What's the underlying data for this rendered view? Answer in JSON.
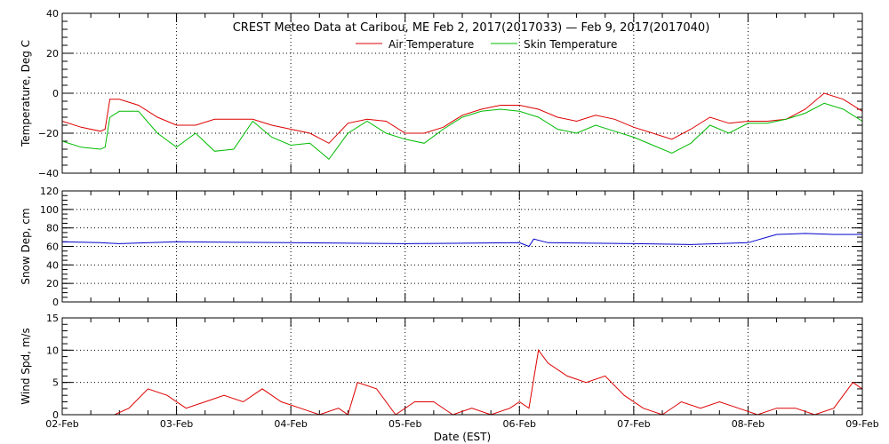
{
  "chart_data": {
    "type": "line",
    "title": "CREST Meteo Data at Caribou, ME   Feb  2, 2017(2017033) — Feb  9, 2017(2017040)",
    "xlabel": "Date (EST)",
    "x_ticks": [
      "02-Feb",
      "03-Feb",
      "04-Feb",
      "05-Feb",
      "06-Feb",
      "07-Feb",
      "08-Feb",
      "09-Feb"
    ],
    "x_range": [
      "2017-02-02T00:00",
      "2017-02-09T00:00"
    ],
    "grid": true,
    "panels": [
      {
        "ylabel": "Temperature, Deg C",
        "ylim": [
          -40,
          40
        ],
        "y_ticks": [
          "40",
          "20",
          "0",
          "−20",
          "−40"
        ],
        "legend": {
          "placement": "top-center"
        },
        "series": [
          {
            "name": "Air Temperature",
            "color": "#dd0000",
            "x": [
              "2017-02-02T00:00",
              "2017-02-02T04:00",
              "2017-02-02T08:00",
              "2017-02-02T09:00",
              "2017-02-02T10:00",
              "2017-02-02T12:00",
              "2017-02-02T16:00",
              "2017-02-02T20:00",
              "2017-02-03T00:00",
              "2017-02-03T04:00",
              "2017-02-03T08:00",
              "2017-02-03T12:00",
              "2017-02-03T16:00",
              "2017-02-03T20:00",
              "2017-02-04T00:00",
              "2017-02-04T04:00",
              "2017-02-04T08:00",
              "2017-02-04T12:00",
              "2017-02-04T16:00",
              "2017-02-04T20:00",
              "2017-02-05T00:00",
              "2017-02-05T04:00",
              "2017-02-05T08:00",
              "2017-02-05T12:00",
              "2017-02-05T16:00",
              "2017-02-05T20:00",
              "2017-02-06T00:00",
              "2017-02-06T04:00",
              "2017-02-06T08:00",
              "2017-02-06T12:00",
              "2017-02-06T16:00",
              "2017-02-06T20:00",
              "2017-02-07T00:00",
              "2017-02-07T04:00",
              "2017-02-07T08:00",
              "2017-02-07T12:00",
              "2017-02-07T16:00",
              "2017-02-07T20:00",
              "2017-02-08T00:00",
              "2017-02-08T04:00",
              "2017-02-08T08:00",
              "2017-02-08T12:00",
              "2017-02-08T16:00",
              "2017-02-08T20:00",
              "2017-02-09T00:00"
            ],
            "values": [
              -14,
              -17,
              -19,
              -18,
              -3,
              -3,
              -6,
              -12,
              -16,
              -16,
              -13,
              -13,
              -13,
              -16,
              -18,
              -20,
              -25,
              -15,
              -13,
              -14,
              -20,
              -20,
              -17,
              -11,
              -8,
              -6,
              -6,
              -8,
              -12,
              -14,
              -11,
              -13,
              -17,
              -20,
              -23,
              -18,
              -12,
              -15,
              -14,
              -14,
              -13,
              -8,
              0,
              -3,
              -9
            ]
          },
          {
            "name": "Skin Temperature",
            "color": "#00bb00",
            "x": [
              "2017-02-02T00:00",
              "2017-02-02T04:00",
              "2017-02-02T08:00",
              "2017-02-02T09:00",
              "2017-02-02T10:00",
              "2017-02-02T12:00",
              "2017-02-02T16:00",
              "2017-02-02T20:00",
              "2017-02-03T00:00",
              "2017-02-03T04:00",
              "2017-02-03T08:00",
              "2017-02-03T12:00",
              "2017-02-03T16:00",
              "2017-02-03T20:00",
              "2017-02-04T00:00",
              "2017-02-04T04:00",
              "2017-02-04T08:00",
              "2017-02-04T12:00",
              "2017-02-04T16:00",
              "2017-02-04T20:00",
              "2017-02-05T00:00",
              "2017-02-05T04:00",
              "2017-02-05T08:00",
              "2017-02-05T12:00",
              "2017-02-05T16:00",
              "2017-02-05T20:00",
              "2017-02-06T00:00",
              "2017-02-06T04:00",
              "2017-02-06T08:00",
              "2017-02-06T12:00",
              "2017-02-06T16:00",
              "2017-02-06T20:00",
              "2017-02-07T00:00",
              "2017-02-07T04:00",
              "2017-02-07T08:00",
              "2017-02-07T12:00",
              "2017-02-07T16:00",
              "2017-02-07T20:00",
              "2017-02-08T00:00",
              "2017-02-08T04:00",
              "2017-02-08T08:00",
              "2017-02-08T12:00",
              "2017-02-08T16:00",
              "2017-02-08T20:00",
              "2017-02-09T00:00"
            ],
            "values": [
              -24,
              -27,
              -28,
              -27,
              -12,
              -9,
              -9,
              -20,
              -27,
              -20,
              -29,
              -28,
              -14,
              -22,
              -26,
              -25,
              -33,
              -20,
              -14,
              -20,
              -23,
              -25,
              -18,
              -12,
              -9,
              -8,
              -9,
              -12,
              -18,
              -20,
              -16,
              -19,
              -22,
              -26,
              -30,
              -25,
              -16,
              -20,
              -15,
              -15,
              -13,
              -10,
              -5,
              -8,
              -14
            ]
          }
        ]
      },
      {
        "ylabel": "Snow Dep, cm",
        "ylim": [
          0,
          120
        ],
        "y_ticks": [
          "120",
          "100",
          "80",
          "60",
          "40",
          "20",
          "0"
        ],
        "series": [
          {
            "color": "#0000cc",
            "x": [
              "2017-02-02T00:00",
              "2017-02-02T08:00",
              "2017-02-02T12:00",
              "2017-02-03T00:00",
              "2017-02-04T00:00",
              "2017-02-05T00:00",
              "2017-02-06T00:00",
              "2017-02-06T02:00",
              "2017-02-06T03:00",
              "2017-02-06T06:00",
              "2017-02-07T00:00",
              "2017-02-07T12:00",
              "2017-02-08T00:00",
              "2017-02-08T06:00",
              "2017-02-08T12:00",
              "2017-02-08T18:00",
              "2017-02-09T00:00"
            ],
            "values": [
              65,
              64,
              63,
              65,
              64,
              63,
              64,
              60,
              68,
              64,
              63,
              62,
              64,
              73,
              74,
              73,
              73
            ]
          }
        ]
      },
      {
        "ylabel": "Wind Spd, m/s",
        "ylim": [
          0,
          15
        ],
        "y_ticks": [
          "15",
          "10",
          "5",
          "0"
        ],
        "series": [
          {
            "color": "#dd0000",
            "x": [
              "2017-02-02T00:00",
              "2017-02-02T04:00",
              "2017-02-02T08:00",
              "2017-02-02T11:00",
              "2017-02-02T14:00",
              "2017-02-02T18:00",
              "2017-02-02T22:00",
              "2017-02-03T02:00",
              "2017-02-03T06:00",
              "2017-02-03T10:00",
              "2017-02-03T14:00",
              "2017-02-03T18:00",
              "2017-02-03T22:00",
              "2017-02-04T02:00",
              "2017-02-04T06:00",
              "2017-02-04T10:00",
              "2017-02-04T12:00",
              "2017-02-04T14:00",
              "2017-02-04T18:00",
              "2017-02-04T22:00",
              "2017-02-05T02:00",
              "2017-02-05T06:00",
              "2017-02-05T10:00",
              "2017-02-05T14:00",
              "2017-02-05T18:00",
              "2017-02-05T22:00",
              "2017-02-06T00:00",
              "2017-02-06T02:00",
              "2017-02-06T04:00",
              "2017-02-06T06:00",
              "2017-02-06T10:00",
              "2017-02-06T14:00",
              "2017-02-06T18:00",
              "2017-02-06T22:00",
              "2017-02-07T02:00",
              "2017-02-07T06:00",
              "2017-02-07T10:00",
              "2017-02-07T14:00",
              "2017-02-07T18:00",
              "2017-02-07T22:00",
              "2017-02-08T02:00",
              "2017-02-08T06:00",
              "2017-02-08T10:00",
              "2017-02-08T14:00",
              "2017-02-08T18:00",
              "2017-02-08T20:00",
              "2017-02-08T22:00",
              "2017-02-09T00:00"
            ],
            "values": [
              0,
              0,
              0,
              0,
              1,
              4,
              3,
              1,
              2,
              3,
              2,
              4,
              2,
              1,
              0,
              1,
              0,
              5,
              4,
              0,
              2,
              2,
              0,
              1,
              0,
              1,
              2,
              1,
              10,
              8,
              6,
              5,
              6,
              3,
              1,
              0,
              2,
              1,
              2,
              1,
              0,
              1,
              1,
              0,
              1,
              3,
              5,
              4
            ]
          }
        ]
      }
    ]
  }
}
